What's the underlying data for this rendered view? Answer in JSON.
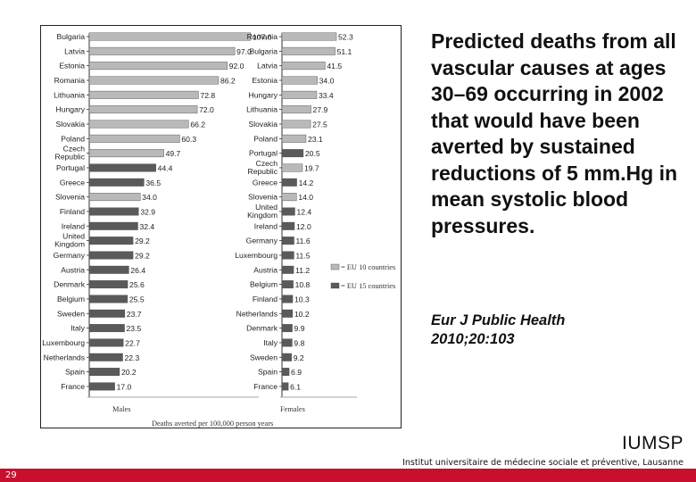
{
  "slide": {
    "title": "Predicted deaths from all vascular causes at ages 30–69 occurring in 2002 that would have been averted by sustained reductions of 5 mm.Hg in mean systolic blood pressures.",
    "citation_line1": "Eur J Public Health",
    "citation_line2": "2010;20:103",
    "logo": "IUMSP",
    "institute": "Institut universitaire de médecine sociale et préventive, Lausanne",
    "page_number": "29"
  },
  "colors": {
    "eu10": "#b9b9b9",
    "eu15": "#5a5a5a",
    "footer": "#c8102e"
  },
  "chart_data": {
    "type": "bar",
    "orientation": "horizontal",
    "xlabel": "Deaths averted per 100,000 person years",
    "legend": [
      {
        "name": "= EU 10 countries",
        "color": "#b9b9b9"
      },
      {
        "name": "= EU 15 countries",
        "color": "#5a5a5a"
      }
    ],
    "legend_position": "right",
    "panels": [
      {
        "name": "Males",
        "xlim": [
          0,
          110
        ],
        "categories": [
          "Bulgaria",
          "Latvia",
          "Estonia",
          "Romania",
          "Lithuania",
          "Hungary",
          "Slovakia",
          "Poland",
          "Czech Republic",
          "Portugal",
          "Greece",
          "Slovenia",
          "Finland",
          "Ireland",
          "United Kingdom",
          "Germany",
          "Austria",
          "Denmark",
          "Belgium",
          "Sweden",
          "Italy",
          "Luxembourg",
          "Netherlands",
          "Spain",
          "France"
        ],
        "values": [
          107.6,
          97.0,
          92.0,
          86.2,
          72.8,
          72.0,
          66.2,
          60.3,
          49.7,
          44.4,
          36.5,
          34.0,
          32.9,
          32.4,
          29.2,
          29.2,
          26.4,
          25.6,
          25.5,
          23.7,
          23.5,
          22.7,
          22.3,
          20.2,
          17.0
        ],
        "labels": [
          "107.6",
          "97.0",
          "92.0",
          "86.2",
          "72.8",
          "72.0",
          "66.2",
          "60.3",
          "49.7",
          "44.4",
          "36.5",
          "34.0",
          "32.9",
          "32.4",
          "29.2",
          "29.2",
          "26.4",
          "25.6",
          "25.5",
          "23.7",
          "23.5",
          "22.7",
          "22.3",
          "20.2",
          "17.0"
        ],
        "group": [
          "EU10",
          "EU10",
          "EU10",
          "EU10",
          "EU10",
          "EU10",
          "EU10",
          "EU10",
          "EU10",
          "EU15",
          "EU15",
          "EU10",
          "EU15",
          "EU15",
          "EU15",
          "EU15",
          "EU15",
          "EU15",
          "EU15",
          "EU15",
          "EU15",
          "EU15",
          "EU15",
          "EU15",
          "EU15"
        ]
      },
      {
        "name": "Females",
        "xlim": [
          0,
          60
        ],
        "categories": [
          "Romania",
          "Bulgaria",
          "Latvia",
          "Estonia",
          "Hungary",
          "Lithuania",
          "Slovakia",
          "Poland",
          "Portugal",
          "Czech Republic",
          "Greece",
          "Slovenia",
          "United Kingdom",
          "Ireland",
          "Germany",
          "Luxembourg",
          "Austria",
          "Belgium",
          "Finland",
          "Netherlands",
          "Denmark",
          "Italy",
          "Sweden",
          "Spain",
          "France"
        ],
        "values": [
          52.3,
          51.1,
          41.5,
          34.0,
          33.4,
          27.9,
          27.5,
          23.1,
          20.5,
          19.7,
          14.2,
          14.0,
          12.4,
          12.0,
          11.6,
          11.5,
          11.2,
          10.8,
          10.3,
          10.2,
          9.9,
          9.8,
          9.2,
          6.9,
          6.1
        ],
        "labels": [
          "52.3",
          "51.1",
          "41.5",
          "34.0",
          "33.4",
          "27.9",
          "27.5",
          "23.1",
          "20.5",
          "19.7",
          "14.2",
          "14.0",
          "12.4",
          "12.0",
          "11.6",
          "11.5",
          "11.2",
          "10.8",
          "10.3",
          "10.2",
          "9.9",
          "9.8",
          "9.2",
          "6.9",
          "6.1"
        ],
        "group": [
          "EU10",
          "EU10",
          "EU10",
          "EU10",
          "EU10",
          "EU10",
          "EU10",
          "EU10",
          "EU15",
          "EU10",
          "EU15",
          "EU10",
          "EU15",
          "EU15",
          "EU15",
          "EU15",
          "EU15",
          "EU15",
          "EU15",
          "EU15",
          "EU15",
          "EU15",
          "EU15",
          "EU15",
          "EU15"
        ]
      }
    ]
  }
}
